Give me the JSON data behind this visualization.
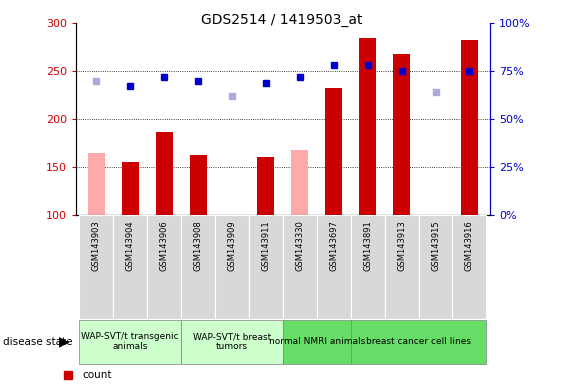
{
  "title": "GDS2514 / 1419503_at",
  "samples": [
    "GSM143903",
    "GSM143904",
    "GSM143906",
    "GSM143908",
    "GSM143909",
    "GSM143911",
    "GSM143330",
    "GSM143697",
    "GSM143891",
    "GSM143913",
    "GSM143915",
    "GSM143916"
  ],
  "count_values": [
    null,
    155,
    186,
    163,
    null,
    160,
    null,
    232,
    284,
    268,
    null,
    282
  ],
  "count_absent": [
    165,
    null,
    null,
    null,
    null,
    null,
    168,
    null,
    null,
    null,
    null,
    null
  ],
  "rank_values": [
    null,
    67,
    72,
    70,
    null,
    69,
    72,
    78,
    78,
    75,
    null,
    75
  ],
  "rank_absent": [
    70,
    null,
    null,
    null,
    62,
    null,
    null,
    null,
    null,
    null,
    64,
    null
  ],
  "ylim_left": [
    100,
    300
  ],
  "ylim_right": [
    0,
    100
  ],
  "yticks_left": [
    100,
    150,
    200,
    250,
    300
  ],
  "yticks_right": [
    0,
    25,
    50,
    75,
    100
  ],
  "group_defs": [
    [
      0,
      2,
      "WAP-SVT/t transgenic\nanimals",
      "#ccffcc"
    ],
    [
      3,
      5,
      "WAP-SVT/t breast\ntumors",
      "#ccffcc"
    ],
    [
      6,
      7,
      "normal NMRI animals",
      "#66dd66"
    ],
    [
      8,
      11,
      "breast cancer cell lines",
      "#66dd66"
    ]
  ],
  "bar_color_dark": "#cc0000",
  "bar_color_absent": "#ffaaaa",
  "rank_color_dark": "#0000cc",
  "rank_color_absent": "#aaaadd",
  "grid_color": "#000000",
  "bg_color": "#ffffff",
  "left_label_color": "#cc0000",
  "right_label_color": "#0000cc",
  "tick_label_bg": "#cccccc",
  "bar_width": 0.5
}
